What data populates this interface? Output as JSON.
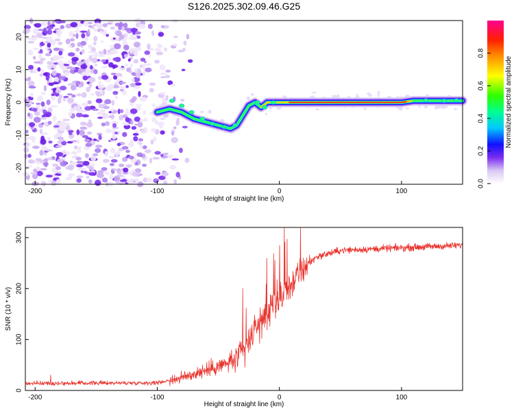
{
  "title": "S126.2025.302.09.46.G25",
  "chart_data": [
    {
      "type": "heatmap",
      "xlabel": "Height of straight line (km)",
      "ylabel": "Frequency (Hz)",
      "xlim": [
        -208,
        150
      ],
      "ylim": [
        -25,
        25
      ],
      "xticks": [
        -200,
        -100,
        0,
        100
      ],
      "yticks": [
        -20,
        -10,
        0,
        10,
        20
      ],
      "colorbar": {
        "label": "Normalized spectral amplitude",
        "range": [
          0,
          1
        ],
        "ticks": [
          "0.0",
          "0.2",
          "0.4",
          "0.6",
          "0.8"
        ]
      },
      "ridge": {
        "x": [
          -100,
          -90,
          -80,
          -70,
          -60,
          -50,
          -45,
          -40,
          -35,
          -30,
          -25,
          -20,
          -15,
          -10,
          0,
          50,
          100,
          110,
          120,
          150
        ],
        "freq": [
          -3,
          -2,
          -3,
          -5,
          -6,
          -7,
          -7.5,
          -8,
          -7,
          -4,
          -1,
          0,
          -1.5,
          0,
          0,
          0,
          0,
          0.5,
          0.5,
          0.5
        ]
      }
    },
    {
      "type": "line",
      "xlabel": "Height of straight line (km)",
      "ylabel": "SNR (10 * v/v)",
      "xlim": [
        -208,
        150
      ],
      "ylim": [
        0,
        320
      ],
      "xticks": [
        -200,
        -100,
        0,
        100
      ],
      "yticks": [
        0,
        100,
        200,
        300
      ],
      "series": [
        {
          "name": "SNR",
          "color": "#e8302a",
          "trend_x": [
            -208,
            -100,
            -80,
            -60,
            -40,
            -30,
            -20,
            -10,
            0,
            10,
            20,
            30,
            50,
            80,
            150
          ],
          "trend_y": [
            14,
            15,
            25,
            40,
            55,
            75,
            120,
            150,
            175,
            210,
            240,
            262,
            275,
            278,
            285
          ]
        }
      ]
    }
  ]
}
